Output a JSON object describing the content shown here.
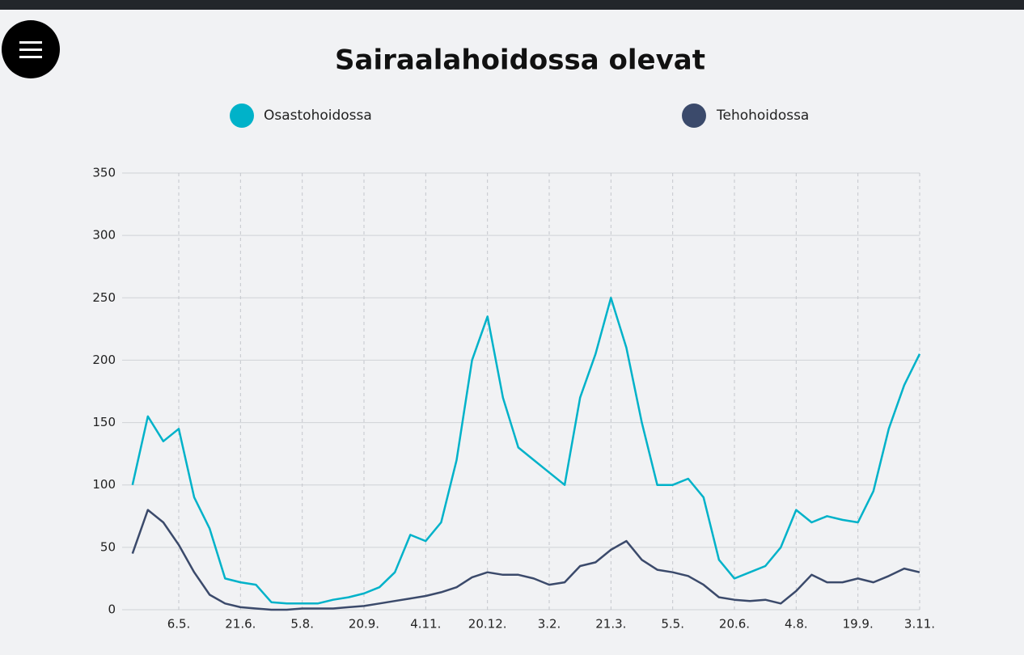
{
  "chart_data": {
    "type": "line",
    "title": "Sairaalahoidossa olevat",
    "categories": [
      null,
      null,
      null,
      "6.5.",
      null,
      null,
      null,
      "21.6.",
      null,
      null,
      null,
      "5.8.",
      null,
      null,
      null,
      "20.9.",
      null,
      null,
      null,
      "4.11.",
      null,
      null,
      null,
      "20.12.",
      null,
      null,
      null,
      "3.2.",
      null,
      null,
      null,
      "21.3.",
      null,
      null,
      null,
      "5.5.",
      null,
      null,
      null,
      "20.6.",
      null,
      null,
      null,
      "4.8.",
      null,
      null,
      null,
      "19.9.",
      null,
      null,
      null,
      "3.11."
    ],
    "series": [
      {
        "name": "Osastohoidossa",
        "color": "#00b2c9",
        "values": [
          100,
          155,
          135,
          145,
          90,
          65,
          25,
          22,
          20,
          6,
          5,
          5,
          5,
          8,
          10,
          13,
          18,
          30,
          60,
          55,
          70,
          120,
          200,
          235,
          170,
          130,
          120,
          110,
          100,
          170,
          205,
          250,
          210,
          150,
          100,
          100,
          105,
          90,
          40,
          25,
          30,
          35,
          50,
          80,
          70,
          75,
          72,
          70,
          95,
          145,
          180,
          205
        ]
      },
      {
        "name": "Tehohoidossa",
        "color": "#3b4a6b",
        "values": [
          45,
          80,
          70,
          52,
          30,
          12,
          5,
          2,
          1,
          0,
          0,
          1,
          1,
          1,
          2,
          3,
          5,
          7,
          9,
          11,
          14,
          18,
          26,
          30,
          28,
          28,
          25,
          20,
          22,
          35,
          38,
          48,
          55,
          40,
          32,
          30,
          27,
          20,
          10,
          8,
          7,
          8,
          5,
          15,
          28,
          22,
          22,
          25,
          22,
          27,
          33,
          30
        ]
      }
    ],
    "ylim": [
      0,
      350
    ],
    "yticks": [
      0,
      50,
      100,
      150,
      200,
      250,
      300,
      350
    ],
    "grid": true
  }
}
